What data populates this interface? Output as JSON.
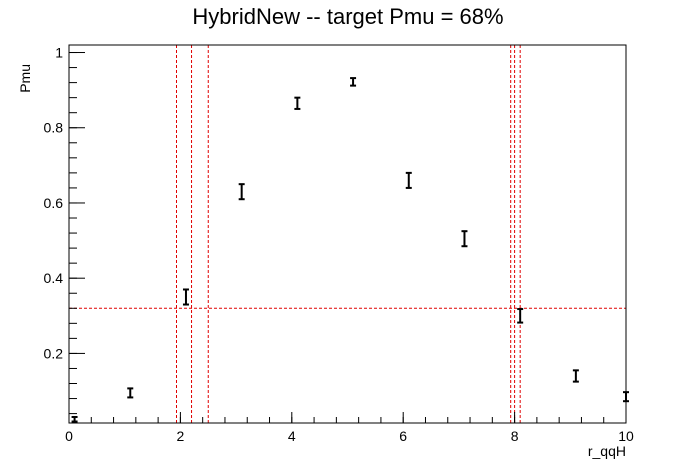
{
  "chart_data": {
    "type": "scatter",
    "title": "HybridNew -- target Pmu = 68%",
    "xlabel": "r_qqH",
    "ylabel": "Pmu",
    "xlim": [
      0,
      10
    ],
    "ylim": [
      0.015,
      1.02
    ],
    "x_ticks": [
      0,
      2,
      4,
      6,
      8,
      10
    ],
    "y_ticks": [
      0.2,
      0.4,
      0.6,
      0.8,
      1
    ],
    "x_tick_labels": [
      "0",
      "2",
      "4",
      "6",
      "8",
      "10"
    ],
    "y_tick_labels": [
      "0.2",
      "0.4",
      "0.6",
      "0.8",
      "1"
    ],
    "grid": false,
    "points": [
      {
        "x": 0.1,
        "y": 0.025,
        "err": 0.006
      },
      {
        "x": 1.1,
        "y": 0.095,
        "err": 0.012
      },
      {
        "x": 2.1,
        "y": 0.35,
        "err": 0.02
      },
      {
        "x": 3.1,
        "y": 0.63,
        "err": 0.02
      },
      {
        "x": 4.1,
        "y": 0.865,
        "err": 0.015
      },
      {
        "x": 5.1,
        "y": 0.922,
        "err": 0.01
      },
      {
        "x": 6.1,
        "y": 0.66,
        "err": 0.02
      },
      {
        "x": 7.1,
        "y": 0.505,
        "err": 0.02
      },
      {
        "x": 8.1,
        "y": 0.3,
        "err": 0.018
      },
      {
        "x": 9.1,
        "y": 0.14,
        "err": 0.015
      },
      {
        "x": 10.0,
        "y": 0.085,
        "err": 0.012
      }
    ],
    "reference_lines": {
      "color": "#e00000",
      "horizontal_y": 0.32,
      "vertical_x": [
        1.93,
        2.2,
        2.5,
        7.93,
        8.0,
        8.1
      ]
    }
  }
}
